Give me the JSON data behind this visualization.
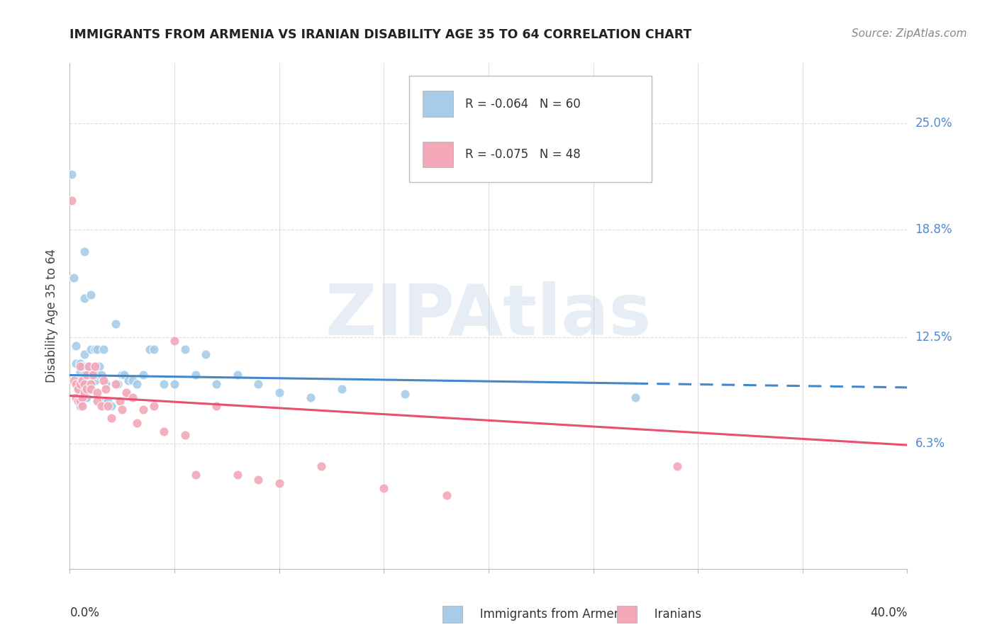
{
  "title": "IMMIGRANTS FROM ARMENIA VS IRANIAN DISABILITY AGE 35 TO 64 CORRELATION CHART",
  "source": "Source: ZipAtlas.com",
  "ylabel": "Disability Age 35 to 64",
  "yticks": [
    0.063,
    0.125,
    0.188,
    0.25
  ],
  "ytick_labels": [
    "6.3%",
    "12.5%",
    "18.8%",
    "25.0%"
  ],
  "xlim": [
    0.0,
    0.4
  ],
  "ylim": [
    -0.01,
    0.285
  ],
  "legend_label_1": "R = -0.064   N = 60",
  "legend_label_2": "R = -0.075   N = 48",
  "watermark": "ZIPAtlas",
  "armenia_color": "#a8cce8",
  "iran_color": "#f2a8b8",
  "armenia_trend_color": "#4488cc",
  "iran_trend_color": "#e85070",
  "armenia_trend_solid_end_x": 0.27,
  "armenia_trend_y_at_0": 0.103,
  "armenia_trend_slope": -0.018,
  "iran_trend_y_at_0": 0.091,
  "iran_trend_slope": -0.072,
  "armenia_points_x": [
    0.001,
    0.002,
    0.003,
    0.003,
    0.004,
    0.004,
    0.005,
    0.005,
    0.005,
    0.005,
    0.005,
    0.006,
    0.006,
    0.006,
    0.007,
    0.007,
    0.007,
    0.007,
    0.008,
    0.008,
    0.008,
    0.009,
    0.009,
    0.01,
    0.01,
    0.011,
    0.012,
    0.012,
    0.013,
    0.013,
    0.014,
    0.015,
    0.016,
    0.016,
    0.017,
    0.018,
    0.02,
    0.022,
    0.023,
    0.025,
    0.026,
    0.028,
    0.03,
    0.032,
    0.035,
    0.038,
    0.04,
    0.045,
    0.05,
    0.055,
    0.06,
    0.065,
    0.07,
    0.08,
    0.09,
    0.1,
    0.115,
    0.13,
    0.16,
    0.27
  ],
  "armenia_points_y": [
    0.22,
    0.16,
    0.12,
    0.11,
    0.1,
    0.095,
    0.11,
    0.105,
    0.098,
    0.092,
    0.085,
    0.108,
    0.1,
    0.093,
    0.175,
    0.148,
    0.115,
    0.103,
    0.1,
    0.095,
    0.09,
    0.108,
    0.098,
    0.15,
    0.118,
    0.103,
    0.118,
    0.1,
    0.103,
    0.118,
    0.108,
    0.103,
    0.118,
    0.088,
    0.098,
    0.088,
    0.085,
    0.133,
    0.098,
    0.103,
    0.103,
    0.1,
    0.1,
    0.098,
    0.103,
    0.118,
    0.118,
    0.098,
    0.098,
    0.118,
    0.103,
    0.115,
    0.098,
    0.103,
    0.098,
    0.093,
    0.09,
    0.095,
    0.092,
    0.09
  ],
  "iran_points_x": [
    0.001,
    0.002,
    0.003,
    0.003,
    0.004,
    0.004,
    0.005,
    0.005,
    0.005,
    0.006,
    0.006,
    0.006,
    0.007,
    0.007,
    0.008,
    0.008,
    0.009,
    0.01,
    0.01,
    0.011,
    0.012,
    0.013,
    0.013,
    0.015,
    0.016,
    0.017,
    0.018,
    0.02,
    0.022,
    0.024,
    0.025,
    0.027,
    0.03,
    0.032,
    0.035,
    0.04,
    0.045,
    0.05,
    0.055,
    0.06,
    0.07,
    0.08,
    0.09,
    0.1,
    0.12,
    0.15,
    0.18,
    0.29
  ],
  "iran_points_y": [
    0.205,
    0.1,
    0.098,
    0.09,
    0.095,
    0.088,
    0.108,
    0.098,
    0.088,
    0.1,
    0.09,
    0.085,
    0.098,
    0.093,
    0.095,
    0.103,
    0.108,
    0.098,
    0.095,
    0.103,
    0.108,
    0.093,
    0.088,
    0.085,
    0.1,
    0.095,
    0.085,
    0.078,
    0.098,
    0.088,
    0.083,
    0.093,
    0.09,
    0.075,
    0.083,
    0.085,
    0.07,
    0.123,
    0.068,
    0.045,
    0.085,
    0.045,
    0.042,
    0.04,
    0.05,
    0.037,
    0.033,
    0.05
  ],
  "xtick_positions": [
    0.0,
    0.05,
    0.1,
    0.15,
    0.2,
    0.25,
    0.3,
    0.35,
    0.4
  ],
  "grid_color": "#dddddd",
  "background_color": "#ffffff",
  "title_color": "#222222",
  "ylabel_color": "#444444",
  "ytick_color": "#5588cc",
  "source_color": "#888888"
}
